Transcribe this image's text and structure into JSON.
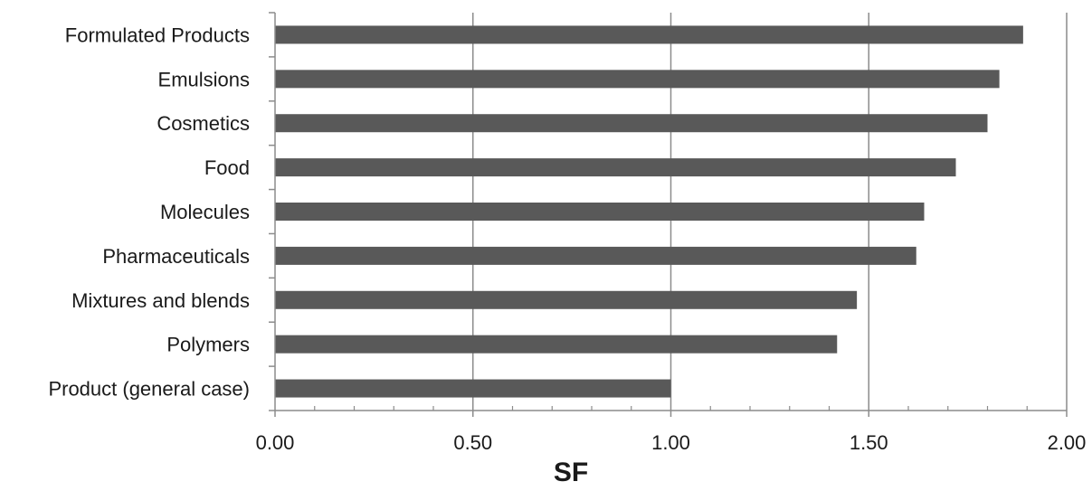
{
  "chart_data": {
    "type": "bar",
    "orientation": "horizontal",
    "categories": [
      "Formulated Products",
      "Emulsions",
      "Cosmetics",
      "Food",
      "Molecules",
      "Pharmaceuticals",
      "Mixtures and blends",
      "Polymers",
      "Product (general case)"
    ],
    "values": [
      1.89,
      1.83,
      1.8,
      1.72,
      1.64,
      1.62,
      1.47,
      1.42,
      1.0
    ],
    "title": "",
    "xlabel": "SF",
    "ylabel": "",
    "xlim": [
      0,
      2
    ],
    "x_ticks": [
      "0.00",
      "0.50",
      "1.00",
      "1.50",
      "2.00"
    ],
    "grid": "vertical major gridlines",
    "legend": "none",
    "colors": {
      "bar": "#595959",
      "gridline": "#8c8c8c",
      "axis": "#8c8c8c"
    }
  }
}
